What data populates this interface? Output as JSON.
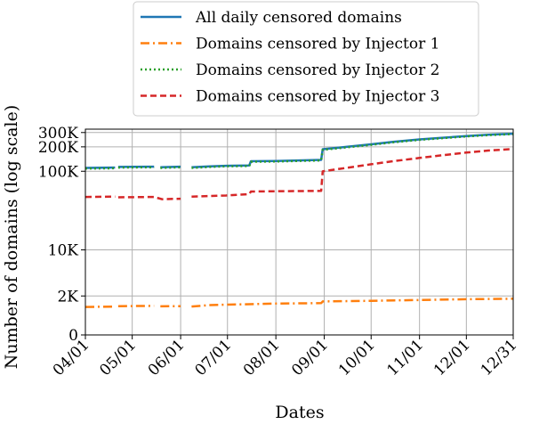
{
  "chart_data": {
    "type": "line",
    "title": "",
    "xlabel": "Dates",
    "ylabel": "Number of domains (log scale)",
    "y_scale": "log",
    "grid": true,
    "legend_position": "top-center",
    "x_ticks": [
      "04/01",
      "05/01",
      "06/01",
      "07/01",
      "08/01",
      "09/01",
      "10/01",
      "11/01",
      "12/01",
      "12/31"
    ],
    "x_tick_dates": [
      "2021-04-01",
      "2021-05-01",
      "2021-06-01",
      "2021-07-01",
      "2021-08-01",
      "2021-09-01",
      "2021-10-01",
      "2021-11-01",
      "2021-12-01",
      "2021-12-31"
    ],
    "y_ticks": [
      {
        "value": 0,
        "label": "0"
      },
      {
        "value": 2000,
        "label": "2K"
      },
      {
        "value": 10000,
        "label": "10K"
      },
      {
        "value": 100000,
        "label": "100K"
      },
      {
        "value": 200000,
        "label": "200K"
      },
      {
        "value": 300000,
        "label": "300K"
      }
    ],
    "ylim": [
      0,
      330000
    ],
    "xlim": [
      "2021-04-01",
      "2021-12-31"
    ],
    "series": [
      {
        "name": "All daily censored domains",
        "color": "#1f77b4",
        "style": "solid",
        "points": [
          [
            "2021-04-01",
            110000
          ],
          [
            "2021-04-20",
            111000
          ],
          [
            "2021-04-21",
            null
          ],
          [
            "2021-04-22",
            113000
          ],
          [
            "2021-05-15",
            114000
          ],
          [
            "2021-05-16",
            null
          ],
          [
            "2021-05-19",
            112000
          ],
          [
            "2021-06-01",
            114000
          ],
          [
            "2021-06-02",
            null
          ],
          [
            "2021-06-08",
            112000
          ],
          [
            "2021-06-20",
            115000
          ],
          [
            "2021-06-30",
            117000
          ],
          [
            "2021-07-15",
            118000
          ],
          [
            "2021-07-16",
            133000
          ],
          [
            "2021-08-01",
            134000
          ],
          [
            "2021-08-30",
            138000
          ],
          [
            "2021-08-31",
            187000
          ],
          [
            "2021-09-15",
            200000
          ],
          [
            "2021-10-01",
            215000
          ],
          [
            "2021-10-15",
            230000
          ],
          [
            "2021-11-01",
            247000
          ],
          [
            "2021-11-15",
            258000
          ],
          [
            "2021-12-01",
            272000
          ],
          [
            "2021-12-15",
            282000
          ],
          [
            "2021-12-31",
            290000
          ]
        ]
      },
      {
        "name": "Domains censored by Injector 1",
        "color": "#ff7f0e",
        "style": "dashdot",
        "points": [
          [
            "2021-04-01",
            1200
          ],
          [
            "2021-04-20",
            1220
          ],
          [
            "2021-04-21",
            null
          ],
          [
            "2021-04-22",
            1250
          ],
          [
            "2021-05-15",
            1270
          ],
          [
            "2021-05-16",
            null
          ],
          [
            "2021-05-19",
            1240
          ],
          [
            "2021-06-01",
            1250
          ],
          [
            "2021-06-02",
            null
          ],
          [
            "2021-06-08",
            1230
          ],
          [
            "2021-06-20",
            1320
          ],
          [
            "2021-07-01",
            1350
          ],
          [
            "2021-07-15",
            1380
          ],
          [
            "2021-08-01",
            1420
          ],
          [
            "2021-08-30",
            1450
          ],
          [
            "2021-08-31",
            1570
          ],
          [
            "2021-10-01",
            1620
          ],
          [
            "2021-11-01",
            1680
          ],
          [
            "2021-12-01",
            1740
          ],
          [
            "2021-12-31",
            1770
          ]
        ]
      },
      {
        "name": "Domains censored by Injector 2",
        "color": "#2ca02c",
        "style": "dotted",
        "points": [
          [
            "2021-04-01",
            108000
          ],
          [
            "2021-04-20",
            109000
          ],
          [
            "2021-04-21",
            null
          ],
          [
            "2021-04-22",
            111000
          ],
          [
            "2021-05-15",
            112000
          ],
          [
            "2021-05-16",
            null
          ],
          [
            "2021-05-19",
            110000
          ],
          [
            "2021-06-01",
            112000
          ],
          [
            "2021-06-02",
            null
          ],
          [
            "2021-06-08",
            110000
          ],
          [
            "2021-06-20",
            113000
          ],
          [
            "2021-06-30",
            115000
          ],
          [
            "2021-07-15",
            116000
          ],
          [
            "2021-07-16",
            131000
          ],
          [
            "2021-08-01",
            132000
          ],
          [
            "2021-08-30",
            136000
          ],
          [
            "2021-08-31",
            184000
          ],
          [
            "2021-09-15",
            197000
          ],
          [
            "2021-10-01",
            212000
          ],
          [
            "2021-10-15",
            227000
          ],
          [
            "2021-11-01",
            244000
          ],
          [
            "2021-11-15",
            255000
          ],
          [
            "2021-12-01",
            269000
          ],
          [
            "2021-12-15",
            279000
          ],
          [
            "2021-12-31",
            287000
          ]
        ]
      },
      {
        "name": "Domains censored by Injector 3",
        "color": "#d62728",
        "style": "dashed",
        "points": [
          [
            "2021-04-01",
            48000
          ],
          [
            "2021-04-20",
            48500
          ],
          [
            "2021-04-21",
            null
          ],
          [
            "2021-04-22",
            47500
          ],
          [
            "2021-05-15",
            48000
          ],
          [
            "2021-05-20",
            45000
          ],
          [
            "2021-06-01",
            45500
          ],
          [
            "2021-06-02",
            null
          ],
          [
            "2021-06-08",
            48500
          ],
          [
            "2021-06-30",
            50000
          ],
          [
            "2021-07-15",
            52000
          ],
          [
            "2021-07-16",
            56000
          ],
          [
            "2021-08-01",
            56500
          ],
          [
            "2021-08-30",
            57000
          ],
          [
            "2021-08-31",
            100000
          ],
          [
            "2021-09-15",
            110000
          ],
          [
            "2021-10-01",
            122000
          ],
          [
            "2021-10-15",
            133000
          ],
          [
            "2021-11-01",
            146000
          ],
          [
            "2021-11-15",
            157000
          ],
          [
            "2021-12-01",
            170000
          ],
          [
            "2021-12-15",
            180000
          ],
          [
            "2021-12-31",
            188000
          ]
        ]
      }
    ]
  }
}
